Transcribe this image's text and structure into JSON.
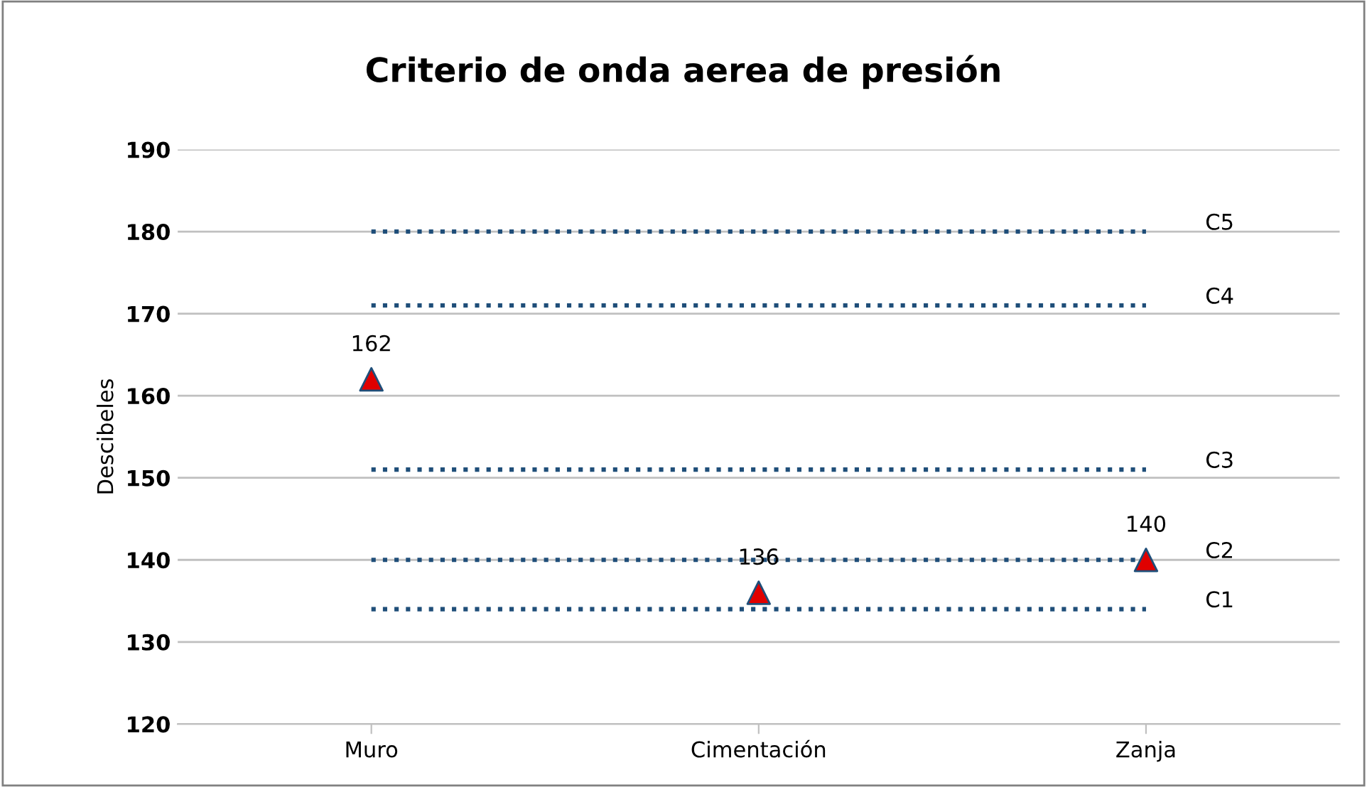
{
  "chart_data": {
    "type": "scatter",
    "title": "Criterio de onda aerea de presión",
    "ylabel": "Descibeles",
    "categories": [
      "Muro",
      "Cimentación",
      "Zanja"
    ],
    "series": [
      {
        "name": "C1",
        "type": "line",
        "color": "#1f4e79",
        "values": [
          134,
          134,
          134
        ]
      },
      {
        "name": "C2",
        "type": "line",
        "color": "#1f4e79",
        "values": [
          140,
          140,
          140
        ]
      },
      {
        "name": "C3",
        "type": "line",
        "color": "#1f4e79",
        "values": [
          151,
          151,
          151
        ]
      },
      {
        "name": "C4",
        "type": "line",
        "color": "#1f4e79",
        "values": [
          171,
          171,
          171
        ]
      },
      {
        "name": "C5",
        "type": "line",
        "color": "#1f4e79",
        "values": [
          180,
          180,
          180
        ]
      },
      {
        "color": "#e00000",
        "marker": "triangle",
        "values": [
          162,
          136,
          140
        ],
        "value_labels": [
          "162",
          "136",
          "140"
        ]
      }
    ],
    "line_style": "dotted",
    "ylim": [
      120,
      190
    ],
    "yticks": [
      120,
      130,
      140,
      150,
      160,
      170,
      180,
      190
    ],
    "grid": "y",
    "legend": false
  }
}
